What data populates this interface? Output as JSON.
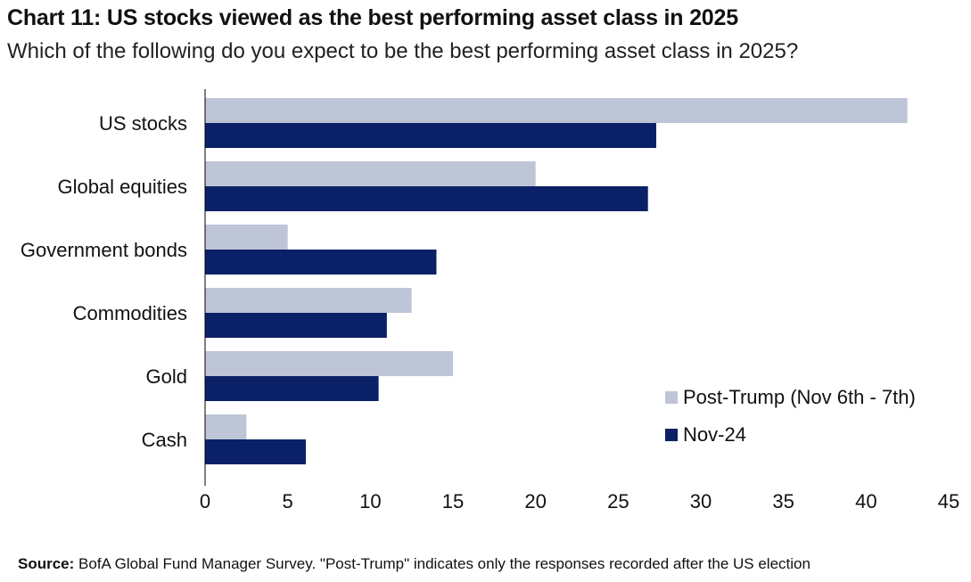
{
  "header": {
    "title": "Chart 11: US stocks viewed as the best performing asset class in 2025",
    "subtitle": "Which of the following do you expect to be the best performing asset class in 2025?"
  },
  "footer": {
    "source_label": "Source:",
    "source_text": " BofA Global Fund Manager Survey. \"Post-Trump\" indicates only the responses recorded after the US election"
  },
  "colors": {
    "post_trump": "#BEC5D6",
    "nov24": "#0A2167",
    "axis": "#000000",
    "text": "#111111"
  },
  "chart_data": {
    "type": "bar",
    "orientation": "horizontal",
    "categories": [
      "US stocks",
      "Global equities",
      "Government bonds",
      "Commodities",
      "Gold",
      "Cash"
    ],
    "series": [
      {
        "name": "Post-Trump (Nov 6th - 7th)",
        "values": [
          42.5,
          20.0,
          5.0,
          12.5,
          15.0,
          2.5
        ]
      },
      {
        "name": "Nov-24",
        "values": [
          27.3,
          26.8,
          14.0,
          11.0,
          10.5,
          6.1
        ]
      }
    ],
    "xlim": [
      0,
      45
    ],
    "xticks": [
      0,
      5,
      10,
      15,
      20,
      25,
      30,
      35,
      40,
      45
    ],
    "legend_position": "bottom-right",
    "grid": false
  }
}
